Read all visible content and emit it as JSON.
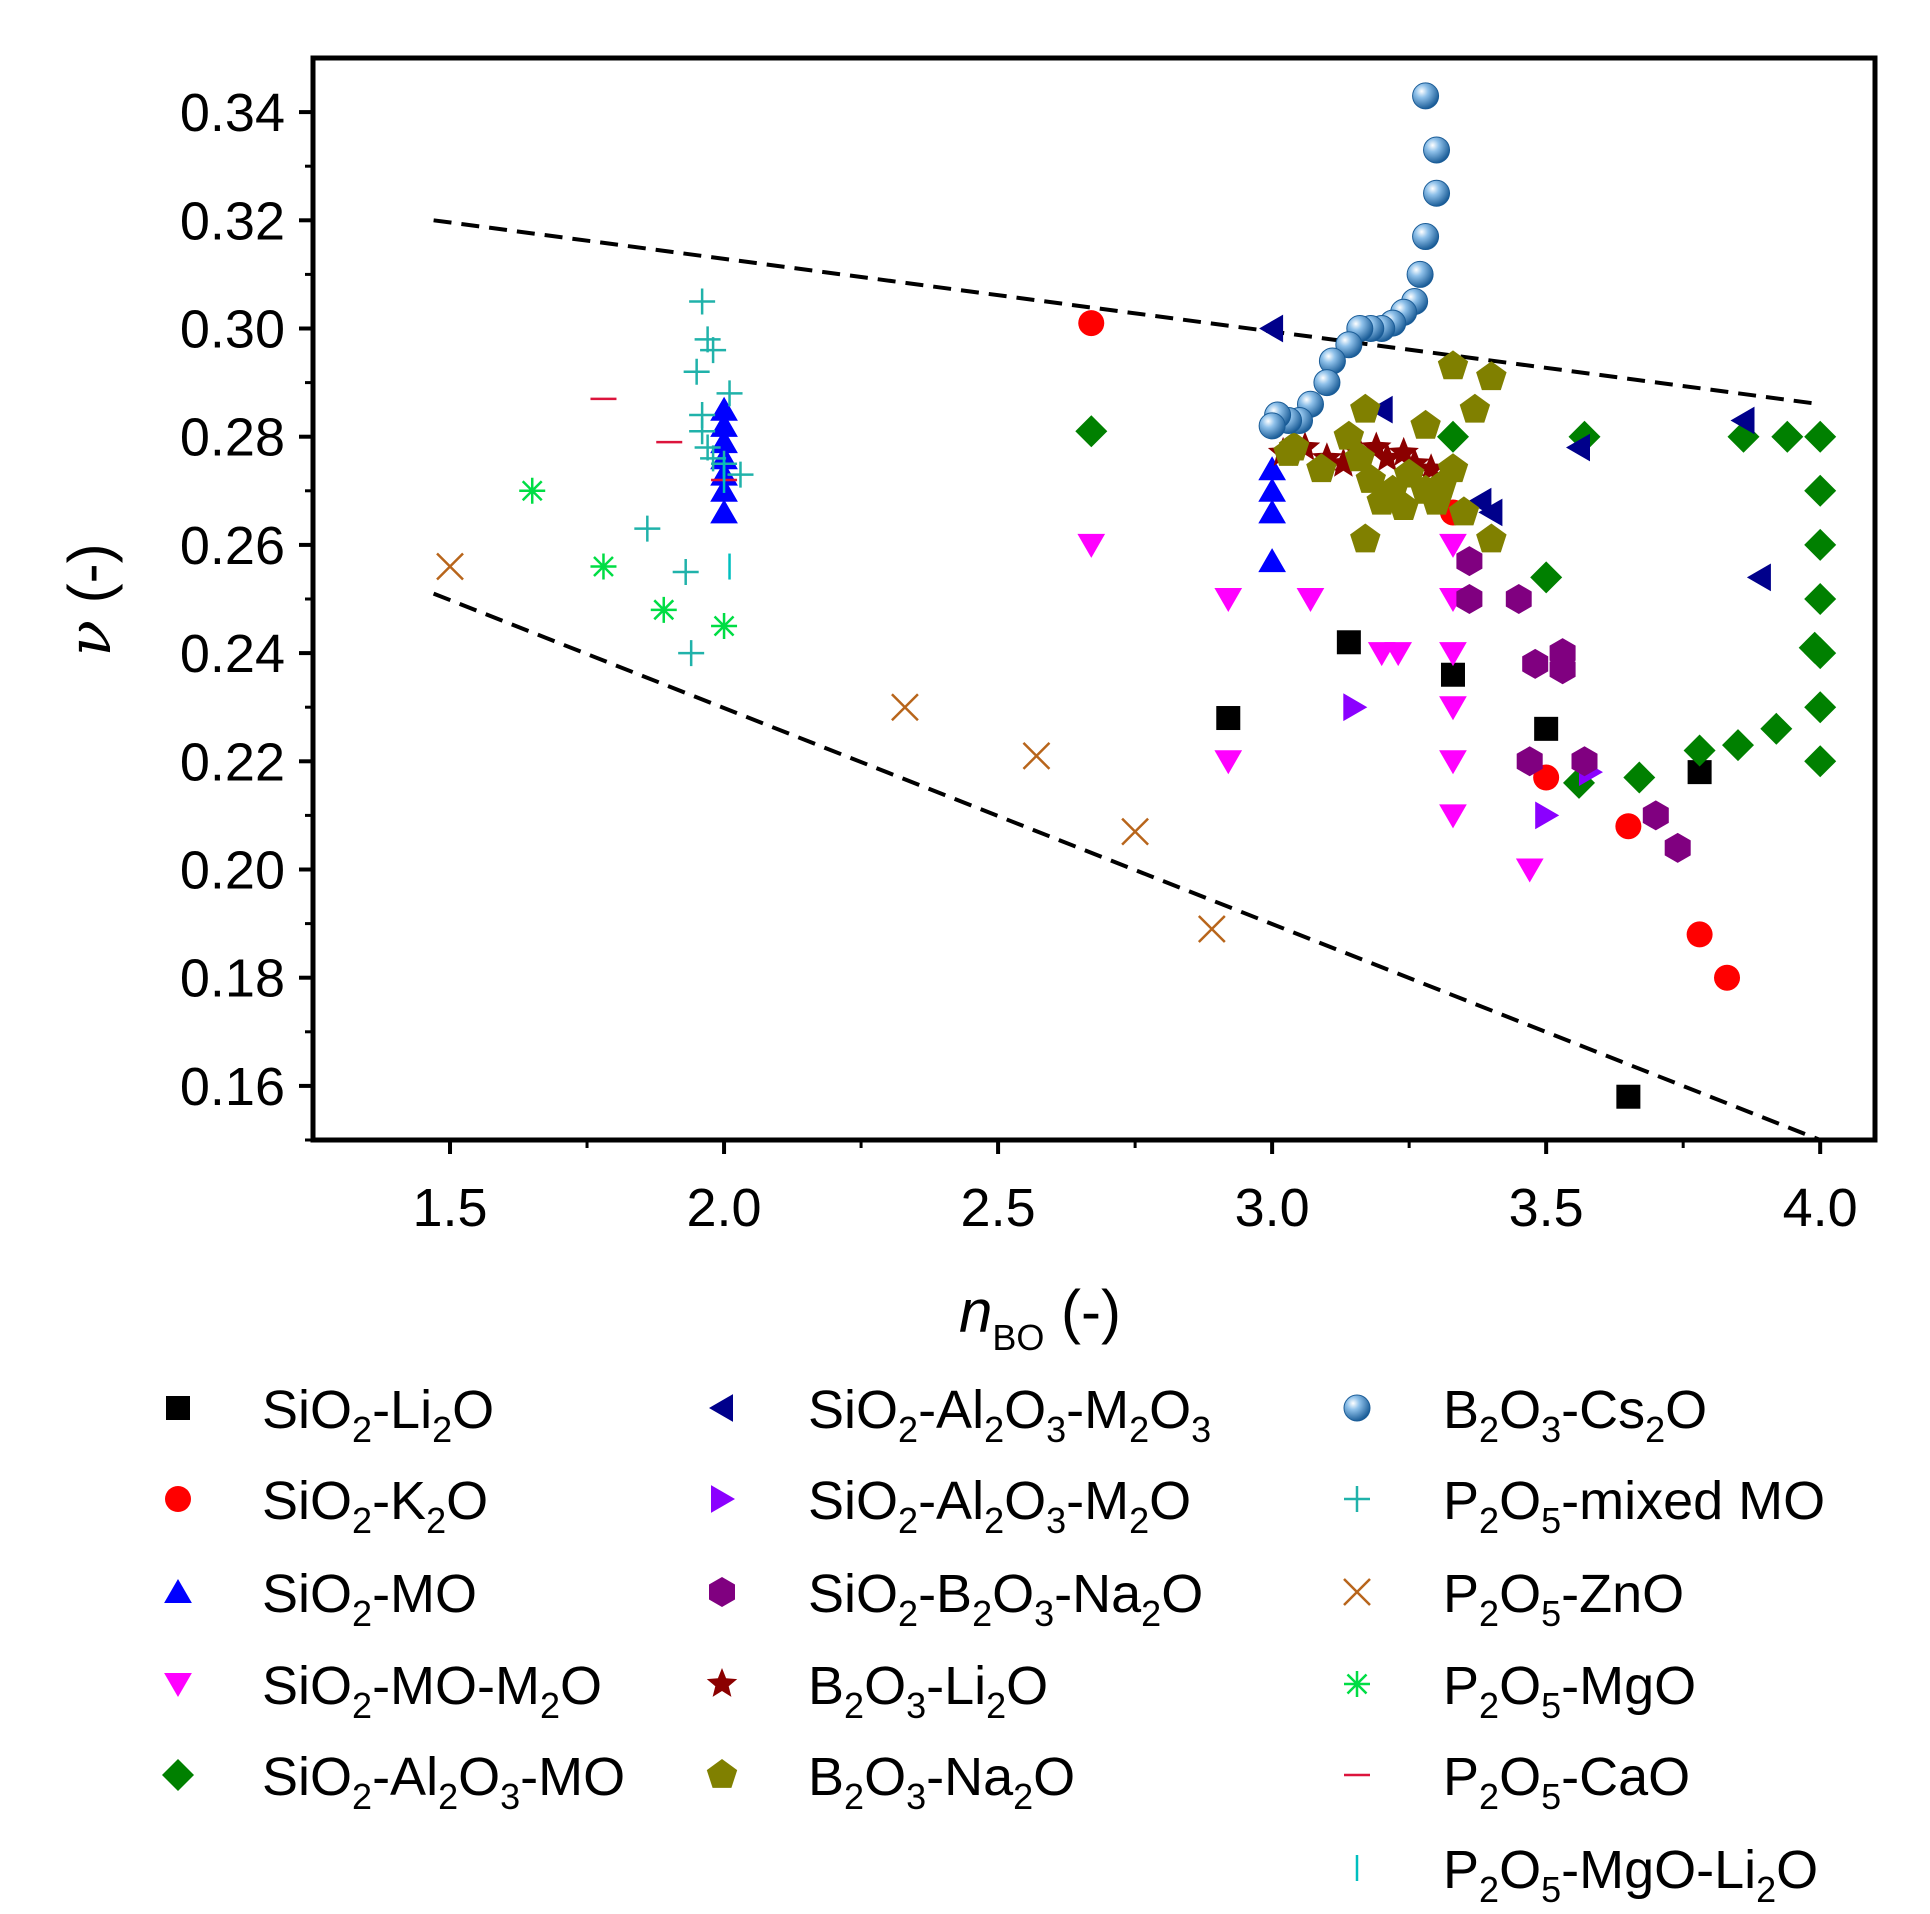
{
  "chart_data": {
    "type": "scatter",
    "title": "",
    "xlabel": {
      "main": "n",
      "sub": "BO",
      "suffix": " (-)"
    },
    "ylabel": {
      "main": "ν",
      "suffix": " (-)"
    },
    "xlim": [
      1.25,
      4.1
    ],
    "ylim": [
      0.15,
      0.35
    ],
    "xticks": [
      1.5,
      2.0,
      2.5,
      3.0,
      3.5,
      4.0
    ],
    "xtick_labels": [
      "1.5",
      "2.0",
      "2.5",
      "3.0",
      "3.5",
      "4.0"
    ],
    "yticks": [
      0.16,
      0.18,
      0.2,
      0.22,
      0.24,
      0.26,
      0.28,
      0.3,
      0.32,
      0.34
    ],
    "ytick_labels": [
      "0.16",
      "0.18",
      "0.20",
      "0.22",
      "0.24",
      "0.26",
      "0.28",
      "0.30",
      "0.32",
      "0.34"
    ],
    "guide_lines": [
      {
        "name": "upper-bound",
        "style": "dashed",
        "points": [
          [
            1.47,
            0.32
          ],
          [
            4.0,
            0.286
          ]
        ]
      },
      {
        "name": "lower-bound",
        "style": "dashed",
        "points": [
          [
            1.47,
            0.251
          ],
          [
            4.0,
            0.15
          ]
        ]
      }
    ],
    "legend_position": "below",
    "series": [
      {
        "id": "sio2-li2o",
        "parts": [
          [
            "SiO"
          ],
          [
            "2",
            "sub"
          ],
          [
            "-Li"
          ],
          [
            "2",
            "sub"
          ],
          [
            "O"
          ]
        ],
        "label": "SiO2-Li2O",
        "marker": "square",
        "color": "#000000",
        "points": [
          [
            2.92,
            0.228
          ],
          [
            3.14,
            0.242
          ],
          [
            3.33,
            0.236
          ],
          [
            3.5,
            0.226
          ],
          [
            3.65,
            0.158
          ],
          [
            3.78,
            0.218
          ]
        ]
      },
      {
        "id": "sio2-k2o",
        "parts": [
          [
            "SiO"
          ],
          [
            "2",
            "sub"
          ],
          [
            "-K"
          ],
          [
            "2",
            "sub"
          ],
          [
            "O"
          ]
        ],
        "label": "SiO2-K2O",
        "marker": "circle",
        "color": "#ff0000",
        "points": [
          [
            2.67,
            0.301
          ],
          [
            3.33,
            0.266
          ],
          [
            3.5,
            0.217
          ],
          [
            3.65,
            0.208
          ],
          [
            3.78,
            0.188
          ],
          [
            3.83,
            0.18
          ]
        ]
      },
      {
        "id": "sio2-mo",
        "parts": [
          [
            "SiO"
          ],
          [
            "2",
            "sub"
          ],
          [
            "-MO"
          ]
        ],
        "label": "SiO2-MO",
        "marker": "triangle-up",
        "color": "#0000ff",
        "points": [
          [
            2.0,
            0.285
          ],
          [
            2.0,
            0.282
          ],
          [
            2.0,
            0.279
          ],
          [
            2.0,
            0.276
          ],
          [
            2.0,
            0.273
          ],
          [
            2.0,
            0.27
          ],
          [
            2.0,
            0.266
          ],
          [
            3.0,
            0.274
          ],
          [
            3.0,
            0.27
          ],
          [
            3.0,
            0.266
          ],
          [
            3.0,
            0.257
          ]
        ]
      },
      {
        "id": "sio2-mo-m2o",
        "parts": [
          [
            "SiO"
          ],
          [
            "2",
            "sub"
          ],
          [
            "-MO-M"
          ],
          [
            "2",
            "sub"
          ],
          [
            "O"
          ]
        ],
        "label": "SiO2-MO-M2O",
        "marker": "triangle-down",
        "color": "#ff00ff",
        "points": [
          [
            2.67,
            0.26
          ],
          [
            2.92,
            0.25
          ],
          [
            2.92,
            0.22
          ],
          [
            3.07,
            0.25
          ],
          [
            3.2,
            0.24
          ],
          [
            3.23,
            0.24
          ],
          [
            3.33,
            0.26
          ],
          [
            3.33,
            0.25
          ],
          [
            3.33,
            0.24
          ],
          [
            3.33,
            0.23
          ],
          [
            3.33,
            0.22
          ],
          [
            3.33,
            0.21
          ],
          [
            3.47,
            0.2
          ]
        ]
      },
      {
        "id": "sio2-al2o3-mo",
        "parts": [
          [
            "SiO"
          ],
          [
            "2",
            "sub"
          ],
          [
            "-Al"
          ],
          [
            "2",
            "sub"
          ],
          [
            "O"
          ],
          [
            "3",
            "sub"
          ],
          [
            "-MO"
          ]
        ],
        "label": "SiO2-Al2O3-MO",
        "marker": "diamond",
        "color": "#008000",
        "points": [
          [
            2.67,
            0.281
          ],
          [
            3.33,
            0.28
          ],
          [
            3.5,
            0.254
          ],
          [
            3.57,
            0.28
          ],
          [
            3.56,
            0.216
          ],
          [
            3.67,
            0.217
          ],
          [
            3.78,
            0.222
          ],
          [
            3.85,
            0.223
          ],
          [
            3.86,
            0.28
          ],
          [
            3.92,
            0.226
          ],
          [
            3.94,
            0.28
          ],
          [
            3.99,
            0.241
          ],
          [
            4.0,
            0.28
          ],
          [
            4.0,
            0.27
          ],
          [
            4.0,
            0.26
          ],
          [
            4.0,
            0.25
          ],
          [
            4.0,
            0.24
          ],
          [
            4.0,
            0.23
          ],
          [
            4.0,
            0.22
          ]
        ]
      },
      {
        "id": "sio2-al2o3-m2o3",
        "parts": [
          [
            "SiO"
          ],
          [
            "2",
            "sub"
          ],
          [
            "-Al"
          ],
          [
            "2",
            "sub"
          ],
          [
            "O"
          ],
          [
            "3",
            "sub"
          ],
          [
            "-M"
          ],
          [
            "2",
            "sub"
          ],
          [
            "O"
          ],
          [
            "3",
            "sub"
          ]
        ],
        "label": "SiO2-Al2O3-M2O3",
        "marker": "triangle-left",
        "color": "#00008b",
        "points": [
          [
            3.0,
            0.3
          ],
          [
            3.2,
            0.285
          ],
          [
            3.38,
            0.268
          ],
          [
            3.4,
            0.266
          ],
          [
            3.56,
            0.278
          ],
          [
            3.86,
            0.283
          ],
          [
            3.89,
            0.254
          ]
        ]
      },
      {
        "id": "sio2-al2o3-m2o",
        "parts": [
          [
            "SiO"
          ],
          [
            "2",
            "sub"
          ],
          [
            "-Al"
          ],
          [
            "2",
            "sub"
          ],
          [
            "O"
          ],
          [
            "3",
            "sub"
          ],
          [
            "-M"
          ],
          [
            "2",
            "sub"
          ],
          [
            "O"
          ]
        ],
        "label": "SiO2-Al2O3-M2O",
        "marker": "triangle-right",
        "color": "#8b00ff",
        "points": [
          [
            3.15,
            0.23
          ],
          [
            3.5,
            0.21
          ],
          [
            3.58,
            0.218
          ]
        ]
      },
      {
        "id": "sio2-b2o3-na2o",
        "parts": [
          [
            "SiO"
          ],
          [
            "2",
            "sub"
          ],
          [
            "-B"
          ],
          [
            "2",
            "sub"
          ],
          [
            "O"
          ],
          [
            "3",
            "sub"
          ],
          [
            "-Na"
          ],
          [
            "2",
            "sub"
          ],
          [
            "O"
          ]
        ],
        "label": "SiO2-B2O3-Na2O",
        "marker": "hexagon",
        "color": "#800080",
        "points": [
          [
            3.36,
            0.257
          ],
          [
            3.36,
            0.25
          ],
          [
            3.45,
            0.25
          ],
          [
            3.48,
            0.238
          ],
          [
            3.47,
            0.22
          ],
          [
            3.53,
            0.24
          ],
          [
            3.53,
            0.237
          ],
          [
            3.57,
            0.22
          ],
          [
            3.7,
            0.21
          ],
          [
            3.74,
            0.204
          ]
        ]
      },
      {
        "id": "b2o3-li2o",
        "parts": [
          [
            "B"
          ],
          [
            "2",
            "sub"
          ],
          [
            "O"
          ],
          [
            "3",
            "sub"
          ],
          [
            "-Li"
          ],
          [
            "2",
            "sub"
          ],
          [
            "O"
          ]
        ],
        "label": "B2O3-Li2O",
        "marker": "star",
        "color": "#8b0000",
        "points": [
          [
            3.02,
            0.277
          ],
          [
            3.06,
            0.278
          ],
          [
            3.1,
            0.276
          ],
          [
            3.13,
            0.275
          ],
          [
            3.16,
            0.277
          ],
          [
            3.19,
            0.278
          ],
          [
            3.21,
            0.276
          ],
          [
            3.24,
            0.277
          ],
          [
            3.26,
            0.275
          ],
          [
            3.29,
            0.274
          ]
        ]
      },
      {
        "id": "b2o3-na2o",
        "parts": [
          [
            "B"
          ],
          [
            "2",
            "sub"
          ],
          [
            "O"
          ],
          [
            "3",
            "sub"
          ],
          [
            "-Na"
          ],
          [
            "2",
            "sub"
          ],
          [
            "O"
          ]
        ],
        "label": "B2O3-Na2O",
        "marker": "pentagon",
        "color": "#808000",
        "points": [
          [
            3.33,
            0.293
          ],
          [
            3.4,
            0.291
          ],
          [
            3.37,
            0.285
          ],
          [
            3.17,
            0.285
          ],
          [
            3.28,
            0.282
          ],
          [
            3.14,
            0.28
          ],
          [
            3.04,
            0.278
          ],
          [
            3.03,
            0.277
          ],
          [
            3.09,
            0.274
          ],
          [
            3.16,
            0.276
          ],
          [
            3.18,
            0.272
          ],
          [
            3.22,
            0.27
          ],
          [
            3.25,
            0.273
          ],
          [
            3.28,
            0.27
          ],
          [
            3.31,
            0.271
          ],
          [
            3.33,
            0.274
          ],
          [
            3.2,
            0.268
          ],
          [
            3.24,
            0.267
          ],
          [
            3.3,
            0.268
          ],
          [
            3.35,
            0.266
          ],
          [
            3.17,
            0.261
          ],
          [
            3.4,
            0.261
          ]
        ]
      },
      {
        "id": "b2o3-cs2o",
        "parts": [
          [
            "B"
          ],
          [
            "2",
            "sub"
          ],
          [
            "O"
          ],
          [
            "3",
            "sub"
          ],
          [
            "-Cs"
          ],
          [
            "2",
            "sub"
          ],
          [
            "O"
          ]
        ],
        "label": "B2O3-Cs2O",
        "marker": "sphere",
        "color": "#1f6fb4",
        "points": [
          [
            3.28,
            0.343
          ],
          [
            3.3,
            0.333
          ],
          [
            3.3,
            0.325
          ],
          [
            3.28,
            0.317
          ],
          [
            3.27,
            0.31
          ],
          [
            3.26,
            0.305
          ],
          [
            3.24,
            0.303
          ],
          [
            3.22,
            0.301
          ],
          [
            3.2,
            0.3
          ],
          [
            3.18,
            0.3
          ],
          [
            3.16,
            0.3
          ],
          [
            3.14,
            0.297
          ],
          [
            3.11,
            0.294
          ],
          [
            3.1,
            0.29
          ],
          [
            3.07,
            0.286
          ],
          [
            3.05,
            0.283
          ],
          [
            3.03,
            0.283
          ],
          [
            3.01,
            0.284
          ],
          [
            3.0,
            0.282
          ]
        ]
      },
      {
        "id": "p2o5-mixed-mo",
        "parts": [
          [
            "P"
          ],
          [
            "2",
            "sub"
          ],
          [
            "O"
          ],
          [
            "5",
            "sub"
          ],
          [
            "-mixed MO"
          ]
        ],
        "label": "P2O5-mixed MO",
        "marker": "plus",
        "color": "#20b2aa",
        "points": [
          [
            1.96,
            0.305
          ],
          [
            1.97,
            0.298
          ],
          [
            1.98,
            0.296
          ],
          [
            1.95,
            0.292
          ],
          [
            1.96,
            0.284
          ],
          [
            2.01,
            0.288
          ],
          [
            1.96,
            0.281
          ],
          [
            1.97,
            0.278
          ],
          [
            1.98,
            0.276
          ],
          [
            2.0,
            0.275
          ],
          [
            2.03,
            0.273
          ],
          [
            1.86,
            0.263
          ],
          [
            1.93,
            0.255
          ],
          [
            1.94,
            0.24
          ]
        ]
      },
      {
        "id": "p2o5-zno",
        "parts": [
          [
            "P"
          ],
          [
            "2",
            "sub"
          ],
          [
            "O"
          ],
          [
            "5",
            "sub"
          ],
          [
            "-ZnO"
          ]
        ],
        "label": "P2O5-ZnO",
        "marker": "cross",
        "color": "#b8651b",
        "points": [
          [
            1.5,
            0.256
          ],
          [
            2.33,
            0.23
          ],
          [
            2.57,
            0.221
          ],
          [
            2.75,
            0.207
          ],
          [
            2.89,
            0.189
          ]
        ]
      },
      {
        "id": "p2o5-mgo",
        "parts": [
          [
            "P"
          ],
          [
            "2",
            "sub"
          ],
          [
            "O"
          ],
          [
            "5",
            "sub"
          ],
          [
            "-MgO"
          ]
        ],
        "label": "P2O5-MgO",
        "marker": "asterisk",
        "color": "#00dd44",
        "points": [
          [
            1.65,
            0.27
          ],
          [
            1.78,
            0.256
          ],
          [
            1.89,
            0.248
          ],
          [
            2.0,
            0.245
          ]
        ]
      },
      {
        "id": "p2o5-cao",
        "parts": [
          [
            "P"
          ],
          [
            "2",
            "sub"
          ],
          [
            "O"
          ],
          [
            "5",
            "sub"
          ],
          [
            "-CaO"
          ]
        ],
        "label": "P2O5-CaO",
        "marker": "hline",
        "color": "#dc143c",
        "points": [
          [
            1.78,
            0.287
          ],
          [
            1.9,
            0.279
          ],
          [
            2.0,
            0.272
          ]
        ]
      },
      {
        "id": "p2o5-mgo-li2o",
        "parts": [
          [
            "P"
          ],
          [
            "2",
            "sub"
          ],
          [
            "O"
          ],
          [
            "5",
            "sub"
          ],
          [
            "-MgO-Li"
          ],
          [
            "2",
            "sub"
          ],
          [
            "O"
          ]
        ],
        "label": "P2O5-MgO-Li2O",
        "marker": "vline",
        "color": "#00bfbf",
        "points": [
          [
            2.0,
            0.274
          ],
          [
            2.0,
            0.272
          ],
          [
            2.01,
            0.256
          ]
        ]
      }
    ]
  }
}
